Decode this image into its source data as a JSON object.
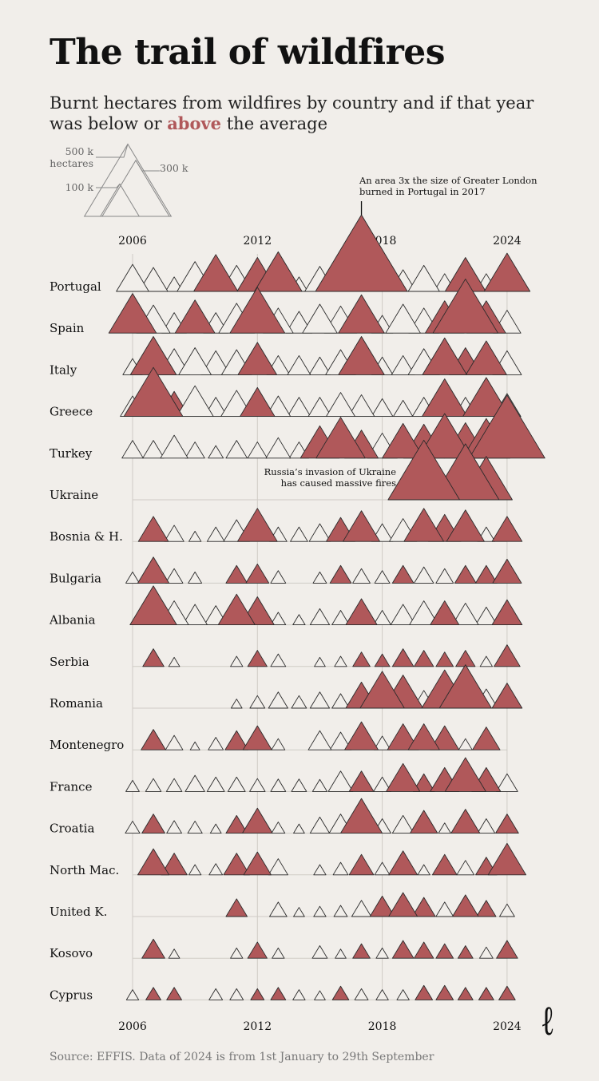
{
  "title": "The trail of wildfires",
  "subtitle_pre": "Burnt hectares from wildfires by country and if that year was below or ",
  "subtitle_hl": "above",
  "subtitle_post": " the average",
  "source": "Source: EFFIS. Data of 2024 is from 1st January to 29th September",
  "logo": "ℓ",
  "colors": {
    "above": "#b0585a",
    "below": "#f1eeea",
    "stroke": "#2a2a2a",
    "grid": "#cfcbc5",
    "legend": "#888888"
  },
  "legend": {
    "label_500k": "500 k",
    "label_hectares": "hectares",
    "label_300k": "300 k",
    "label_100k": "100 k"
  },
  "annotations": {
    "portugal_line1": "An area 3x the size of Greater London",
    "portugal_line2": "burned in Portugal in 2017",
    "ukraine_line1": "Russia’s invasion of Ukraine",
    "ukraine_line2": "has caused massive fires"
  },
  "chart_data": {
    "type": "triangle-strip",
    "unit": "thousand hectares burnt",
    "x_ticks": [
      2006,
      2012,
      2018,
      2024
    ],
    "years": [
      2006,
      2007,
      2008,
      2009,
      2010,
      2011,
      2012,
      2013,
      2014,
      2015,
      2016,
      2017,
      2018,
      2019,
      2020,
      2021,
      2022,
      2023,
      2024
    ],
    "series": [
      {
        "country": "Portugal",
        "values": [
          70,
          55,
          20,
          85,
          130,
          65,
          110,
          150,
          20,
          60,
          160,
          560,
          40,
          45,
          65,
          30,
          110,
          30,
          140
        ],
        "above": [
          0,
          0,
          0,
          0,
          1,
          0,
          1,
          1,
          0,
          0,
          1,
          1,
          0,
          0,
          0,
          0,
          1,
          0,
          1
        ]
      },
      {
        "country": "Spain",
        "values": [
          150,
          75,
          40,
          105,
          40,
          85,
          200,
          60,
          45,
          80,
          70,
          140,
          30,
          80,
          60,
          100,
          280,
          100,
          50
        ],
        "above": [
          1,
          0,
          0,
          1,
          0,
          0,
          1,
          0,
          0,
          0,
          0,
          1,
          0,
          0,
          0,
          1,
          1,
          1,
          0
        ]
      },
      {
        "country": "Italy",
        "values": [
          25,
          140,
          65,
          70,
          55,
          60,
          100,
          35,
          35,
          30,
          60,
          140,
          30,
          35,
          65,
          130,
          70,
          110,
          55
        ],
        "above": [
          0,
          1,
          0,
          0,
          0,
          0,
          1,
          0,
          0,
          0,
          0,
          1,
          0,
          0,
          0,
          1,
          1,
          1,
          0
        ]
      },
      {
        "country": "Greece",
        "values": [
          40,
          230,
          60,
          90,
          35,
          65,
          80,
          40,
          35,
          35,
          55,
          45,
          30,
          25,
          35,
          135,
          35,
          145,
          50
        ],
        "above": [
          0,
          1,
          1,
          0,
          0,
          0,
          1,
          0,
          0,
          0,
          0,
          0,
          0,
          0,
          0,
          1,
          0,
          1,
          0
        ]
      },
      {
        "country": "Turkey",
        "values": [
          30,
          30,
          50,
          25,
          15,
          30,
          25,
          40,
          25,
          100,
          160,
          75,
          60,
          115,
          110,
          190,
          120,
          150,
          380
        ],
        "above": [
          0,
          0,
          0,
          0,
          0,
          0,
          0,
          0,
          0,
          1,
          1,
          1,
          0,
          1,
          1,
          1,
          1,
          1,
          1
        ]
      },
      {
        "country": "Ukraine",
        "values": [
          0,
          0,
          0,
          0,
          0,
          0,
          0,
          0,
          0,
          0,
          0,
          0,
          0,
          0,
          340,
          20,
          300,
          180,
          0
        ],
        "above": [
          0,
          0,
          0,
          0,
          0,
          0,
          0,
          0,
          0,
          0,
          0,
          0,
          0,
          0,
          1,
          0,
          1,
          1,
          0
        ]
      },
      {
        "country": "Bosnia & H.",
        "values": [
          0,
          60,
          25,
          10,
          20,
          45,
          105,
          20,
          20,
          30,
          55,
          90,
          30,
          50,
          105,
          70,
          95,
          20,
          60
        ],
        "above": [
          0,
          1,
          0,
          0,
          0,
          0,
          1,
          0,
          0,
          0,
          1,
          1,
          0,
          0,
          1,
          1,
          1,
          0,
          1
        ]
      },
      {
        "country": "Bulgaria",
        "values": [
          12,
          65,
          20,
          12,
          0,
          30,
          35,
          15,
          0,
          12,
          30,
          20,
          15,
          30,
          25,
          20,
          30,
          30,
          55
        ],
        "above": [
          0,
          1,
          0,
          0,
          0,
          1,
          1,
          0,
          0,
          0,
          1,
          0,
          0,
          1,
          0,
          0,
          1,
          1,
          1
        ]
      },
      {
        "country": "Albania",
        "values": [
          0,
          145,
          55,
          40,
          35,
          90,
          75,
          15,
          10,
          25,
          20,
          65,
          20,
          40,
          55,
          55,
          45,
          30,
          60
        ],
        "above": [
          0,
          1,
          0,
          0,
          0,
          1,
          1,
          0,
          0,
          0,
          0,
          1,
          0,
          0,
          0,
          1,
          0,
          0,
          1
        ]
      },
      {
        "country": "Serbia",
        "values": [
          0,
          30,
          8,
          0,
          0,
          10,
          25,
          15,
          0,
          8,
          10,
          20,
          15,
          30,
          25,
          20,
          25,
          10,
          45
        ],
        "above": [
          0,
          1,
          0,
          0,
          0,
          0,
          1,
          0,
          0,
          0,
          0,
          1,
          1,
          1,
          1,
          1,
          1,
          0,
          1
        ]
      },
      {
        "country": "Romania",
        "values": [
          0,
          0,
          0,
          0,
          0,
          8,
          15,
          25,
          15,
          25,
          20,
          65,
          130,
          105,
          30,
          140,
          180,
          35,
          60
        ],
        "above": [
          0,
          0,
          0,
          0,
          0,
          0,
          0,
          0,
          0,
          0,
          0,
          1,
          1,
          1,
          0,
          1,
          1,
          0,
          1
        ]
      },
      {
        "country": "Montenegro",
        "values": [
          0,
          40,
          20,
          6,
          15,
          35,
          55,
          12,
          0,
          35,
          30,
          75,
          18,
          65,
          65,
          55,
          12,
          50,
          0
        ],
        "above": [
          0,
          1,
          0,
          0,
          0,
          1,
          1,
          0,
          0,
          0,
          0,
          1,
          0,
          1,
          1,
          1,
          0,
          1,
          0
        ]
      },
      {
        "country": "France",
        "values": [
          12,
          16,
          16,
          25,
          20,
          20,
          16,
          15,
          15,
          14,
          40,
          40,
          20,
          75,
          30,
          55,
          110,
          55,
          30
        ],
        "above": [
          0,
          0,
          0,
          0,
          0,
          0,
          0,
          0,
          0,
          0,
          0,
          1,
          0,
          1,
          1,
          1,
          1,
          1,
          0
        ]
      },
      {
        "country": "Croatia",
        "values": [
          14,
          35,
          15,
          14,
          8,
          30,
          60,
          12,
          8,
          25,
          35,
          115,
          20,
          30,
          50,
          10,
          55,
          20,
          35
        ],
        "above": [
          0,
          1,
          0,
          0,
          0,
          1,
          1,
          0,
          0,
          0,
          0,
          1,
          0,
          0,
          1,
          0,
          1,
          0,
          1
        ]
      },
      {
        "country": "North Mac.",
        "values": [
          0,
          65,
          45,
          10,
          12,
          45,
          50,
          25,
          0,
          10,
          15,
          40,
          15,
          55,
          10,
          40,
          20,
          30,
          95
        ],
        "above": [
          0,
          1,
          1,
          0,
          0,
          1,
          1,
          0,
          0,
          0,
          0,
          1,
          0,
          1,
          0,
          1,
          0,
          1,
          1
        ]
      },
      {
        "country": "United K.",
        "values": [
          0,
          0,
          0,
          0,
          0,
          30,
          0,
          20,
          8,
          10,
          12,
          25,
          40,
          55,
          35,
          20,
          45,
          25,
          15
        ],
        "above": [
          0,
          0,
          0,
          0,
          0,
          1,
          0,
          0,
          0,
          0,
          0,
          0,
          1,
          1,
          1,
          0,
          1,
          1,
          0
        ]
      },
      {
        "country": "Kosovo",
        "values": [
          0,
          35,
          8,
          0,
          0,
          10,
          25,
          10,
          0,
          15,
          8,
          20,
          10,
          30,
          25,
          20,
          15,
          12,
          30
        ],
        "above": [
          0,
          1,
          0,
          0,
          0,
          0,
          1,
          0,
          0,
          0,
          0,
          1,
          0,
          1,
          1,
          1,
          1,
          0,
          1
        ]
      },
      {
        "country": "Cyprus",
        "values": [
          10,
          15,
          15,
          0,
          12,
          12,
          12,
          15,
          10,
          8,
          18,
          12,
          10,
          10,
          20,
          20,
          15,
          15,
          18
        ],
        "above": [
          0,
          1,
          1,
          0,
          0,
          0,
          1,
          1,
          0,
          0,
          1,
          0,
          0,
          0,
          1,
          1,
          1,
          1,
          1
        ]
      }
    ]
  }
}
